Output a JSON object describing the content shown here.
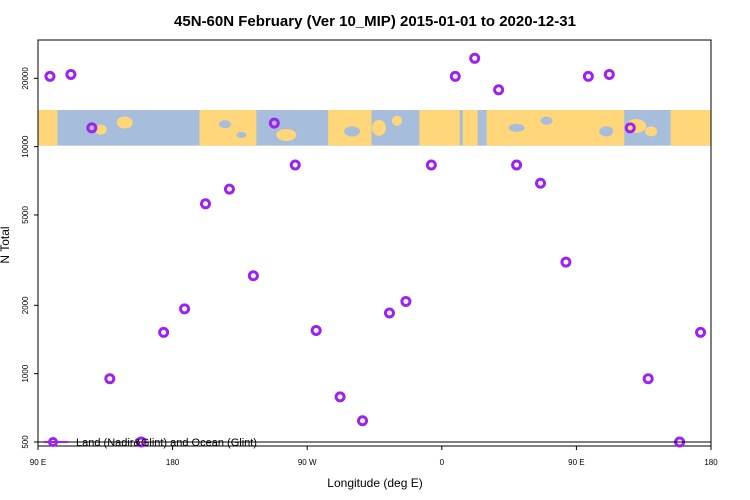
{
  "chart_data": {
    "type": "scatter",
    "title": "45N-60N February (Ver 10_MIP)   2015-01-01 to 2020-12-31",
    "xlabel": "Longitude (deg E)",
    "ylabel": "N Total",
    "x_ticks": [
      {
        "value": 90,
        "label": "90 E"
      },
      {
        "value": 180,
        "label": "180"
      },
      {
        "value": 270,
        "label": "90 W"
      },
      {
        "value": 360,
        "label": "0"
      },
      {
        "value": 450,
        "label": "90 E"
      },
      {
        "value": 540,
        "label": "180"
      }
    ],
    "y_ticks": [
      {
        "value": 500,
        "label": "500"
      },
      {
        "value": 1000,
        "label": "1000"
      },
      {
        "value": 2000,
        "label": "2000"
      },
      {
        "value": 5000,
        "label": "5000"
      },
      {
        "value": 10000,
        "label": "10000"
      },
      {
        "value": 20000,
        "label": "20000"
      }
    ],
    "xlim": [
      90,
      540
    ],
    "ylim": [
      480,
      29500
    ],
    "y_scale": "log",
    "grid": false,
    "legend_position": "bottom-left",
    "series": [
      {
        "name": "Land (Nadir&Glint) and Ocean (Glint)",
        "color": "#a020f0",
        "marker": "open-circle",
        "points": [
          {
            "x": 98,
            "y": 20400
          },
          {
            "x": 112,
            "y": 20800
          },
          {
            "x": 126,
            "y": 12100
          },
          {
            "x": 138,
            "y": 950
          },
          {
            "x": 159,
            "y": 500
          },
          {
            "x": 174,
            "y": 1520
          },
          {
            "x": 188,
            "y": 1930
          },
          {
            "x": 202,
            "y": 5600
          },
          {
            "x": 218,
            "y": 6500
          },
          {
            "x": 234,
            "y": 2700
          },
          {
            "x": 248,
            "y": 12700
          },
          {
            "x": 262,
            "y": 8300
          },
          {
            "x": 276,
            "y": 1550
          },
          {
            "x": 292,
            "y": 790
          },
          {
            "x": 307,
            "y": 620
          },
          {
            "x": 325,
            "y": 1850
          },
          {
            "x": 336,
            "y": 2080
          },
          {
            "x": 353,
            "y": 8300
          },
          {
            "x": 369,
            "y": 20400
          },
          {
            "x": 382,
            "y": 24500
          },
          {
            "x": 398,
            "y": 17800
          },
          {
            "x": 410,
            "y": 8300
          },
          {
            "x": 426,
            "y": 6900
          },
          {
            "x": 443,
            "y": 3100
          },
          {
            "x": 458,
            "y": 20400
          },
          {
            "x": 472,
            "y": 20800
          },
          {
            "x": 486,
            "y": 12100
          },
          {
            "x": 498,
            "y": 950
          },
          {
            "x": 519,
            "y": 500
          },
          {
            "x": 533,
            "y": 1520
          }
        ]
      }
    ],
    "background_map_band": {
      "y_range": [
        10100,
        14500
      ],
      "ocean_color": "#a7bddc",
      "land_color": "#ffd679"
    }
  }
}
